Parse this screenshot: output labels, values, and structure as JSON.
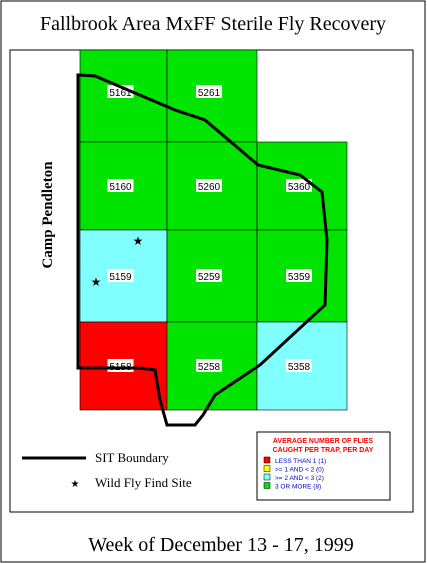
{
  "header": {
    "title": "Fallbrook Area MxFF Sterile Fly Recovery"
  },
  "map": {
    "side_label": "Camp Pendleton",
    "cells": [
      "5161",
      "5261",
      "5160",
      "5260",
      "5360",
      "5159",
      "5259",
      "5359",
      "5158",
      "5258",
      "5358"
    ]
  },
  "legend": {
    "boundary": "SIT Boundary",
    "wild_fly": "Wild Fly Find Site"
  },
  "key": {
    "title": [
      "AVERAGE NUMBER OF FLIES",
      "CAUGHT PER TRAP, PER DAY"
    ],
    "items": [
      "LESS THAN 1  (1)",
      ">= 1 AND < 2  (0)",
      ">= 2 AND < 3  (2)",
      "3 OR MORE   (8)"
    ]
  },
  "footer": {
    "week": "Week of December 13 - 17, 1999"
  }
}
